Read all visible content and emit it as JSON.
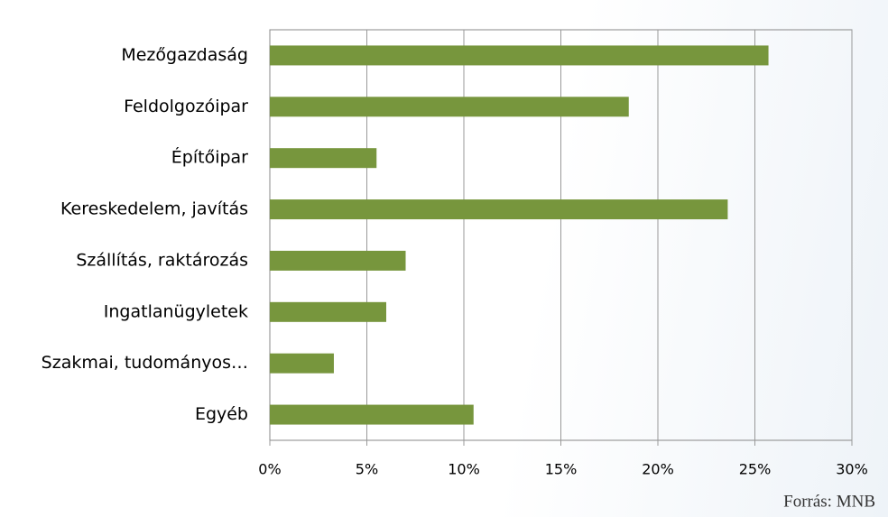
{
  "chart_data": {
    "type": "bar",
    "orientation": "horizontal",
    "categories": [
      "Mezőgazdaság",
      "Feldolgozóipar",
      "Építőipar",
      "Kereskedelem, javítás",
      "Szállítás, raktározás",
      "Ingatlanügyletek",
      "Szakmai, tudományos…",
      "Egyéb"
    ],
    "values": [
      25.7,
      18.5,
      5.5,
      23.6,
      7.0,
      6.0,
      3.3,
      10.5
    ],
    "color": "#77963d",
    "xlim": [
      0,
      30
    ],
    "xticks": [
      {
        "value": 0,
        "label": "0%"
      },
      {
        "value": 5,
        "label": "5%"
      },
      {
        "value": 10,
        "label": "10%"
      },
      {
        "value": 15,
        "label": "15%"
      },
      {
        "value": 20,
        "label": "20%"
      },
      {
        "value": 25,
        "label": "25%"
      },
      {
        "value": 30,
        "label": "30%"
      }
    ],
    "grid": true,
    "source": "Forrás: MNB"
  }
}
